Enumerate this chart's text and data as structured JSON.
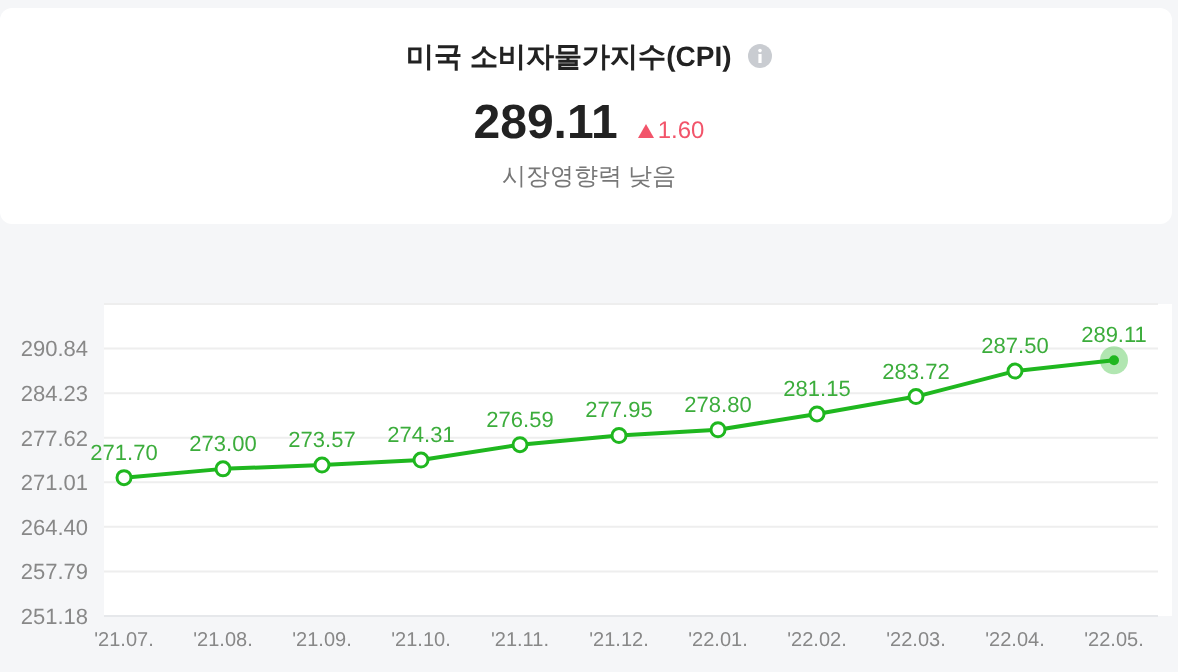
{
  "chart_data": {
    "type": "line",
    "title": "미국 소비자물가지수(CPI)",
    "annotations": [
      "289.11",
      "1.60",
      "시장영향력 낮음"
    ],
    "categories": [
      "'21.07.",
      "'21.08.",
      "'21.09.",
      "'21.10.",
      "'21.11.",
      "'21.12.",
      "'22.01.",
      "'22.02.",
      "'22.03.",
      "'22.04.",
      "'22.05."
    ],
    "series": [
      {
        "color": "#1fb71f",
        "values": [
          271.7,
          273.0,
          273.57,
          274.31,
          276.59,
          277.95,
          278.8,
          281.15,
          283.72,
          287.5,
          289.11
        ],
        "value_labels": [
          "271.70",
          "273.00",
          "273.57",
          "274.31",
          "276.59",
          "277.95",
          "278.80",
          "281.15",
          "283.72",
          "287.50",
          "289.11"
        ]
      }
    ],
    "ylim": [
      251.18,
      297.45
    ],
    "yticks": [
      251.18,
      257.79,
      {
        "value": 264.4,
        "label": "264.40"
      },
      271.01,
      277.62,
      284.23,
      290.84,
      {
        "value": 297.45,
        "label": null
      }
    ],
    "grid": "y",
    "legend": false,
    "marker": "circle",
    "line_style": "solid"
  }
}
